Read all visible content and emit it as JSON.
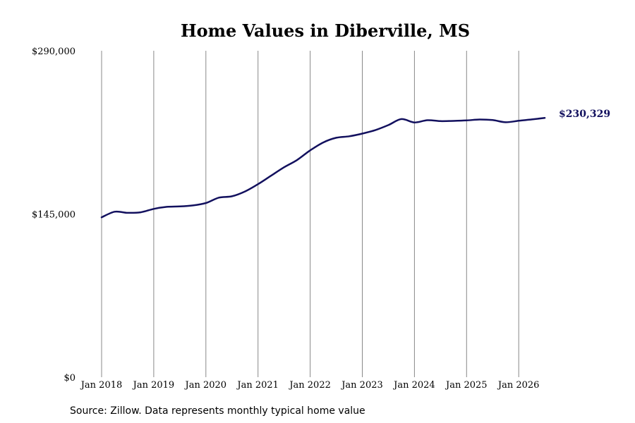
{
  "chart_data": {
    "type": "line",
    "title": "Home Values in Diberville, MS",
    "source": "Source: Zillow. Data represents monthly typical home value",
    "xlabel": "",
    "ylabel": "",
    "ylim": [
      0,
      290000
    ],
    "y_ticks": [
      {
        "value": 0,
        "label": "$0"
      },
      {
        "value": 145000,
        "label": "$145,000"
      },
      {
        "value": 290000,
        "label": "$290,000"
      }
    ],
    "x_ticks": [
      {
        "value": "2018-01",
        "label": "Jan 2018"
      },
      {
        "value": "2019-01",
        "label": "Jan 2019"
      },
      {
        "value": "2020-01",
        "label": "Jan 2020"
      },
      {
        "value": "2021-01",
        "label": "Jan 2021"
      },
      {
        "value": "2022-01",
        "label": "Jan 2022"
      },
      {
        "value": "2023-01",
        "label": "Jan 2023"
      },
      {
        "value": "2024-01",
        "label": "Jan 2024"
      },
      {
        "value": "2025-01",
        "label": "Jan 2025"
      },
      {
        "value": "2026-01",
        "label": "Jan 2026"
      }
    ],
    "grid": "vertical",
    "line_color": "#12105e",
    "end_label": "$230,329",
    "series": [
      {
        "points": [
          [
            "2018-01",
            142000
          ],
          [
            "2018-04",
            147000
          ],
          [
            "2018-07",
            146000
          ],
          [
            "2018-10",
            146500
          ],
          [
            "2019-01",
            149500
          ],
          [
            "2019-04",
            151300
          ],
          [
            "2019-07",
            151700
          ],
          [
            "2019-10",
            152600
          ],
          [
            "2020-01",
            154700
          ],
          [
            "2020-04",
            159500
          ],
          [
            "2020-07",
            160700
          ],
          [
            "2020-10",
            165000
          ],
          [
            "2021-01",
            171500
          ],
          [
            "2021-04",
            179000
          ],
          [
            "2021-07",
            186500
          ],
          [
            "2021-10",
            193000
          ],
          [
            "2022-01",
            201500
          ],
          [
            "2022-04",
            208500
          ],
          [
            "2022-07",
            212700
          ],
          [
            "2022-10",
            214000
          ],
          [
            "2023-01",
            216400
          ],
          [
            "2023-04",
            219500
          ],
          [
            "2023-07",
            224000
          ],
          [
            "2023-10",
            229300
          ],
          [
            "2024-01",
            226300
          ],
          [
            "2024-04",
            228300
          ],
          [
            "2024-07",
            227500
          ],
          [
            "2024-10",
            227700
          ],
          [
            "2025-01",
            228100
          ],
          [
            "2025-04",
            228900
          ],
          [
            "2025-07",
            228400
          ],
          [
            "2025-10",
            226500
          ],
          [
            "2026-01",
            227800
          ],
          [
            "2026-04",
            229000
          ],
          [
            "2026-07",
            230329
          ]
        ]
      }
    ]
  }
}
